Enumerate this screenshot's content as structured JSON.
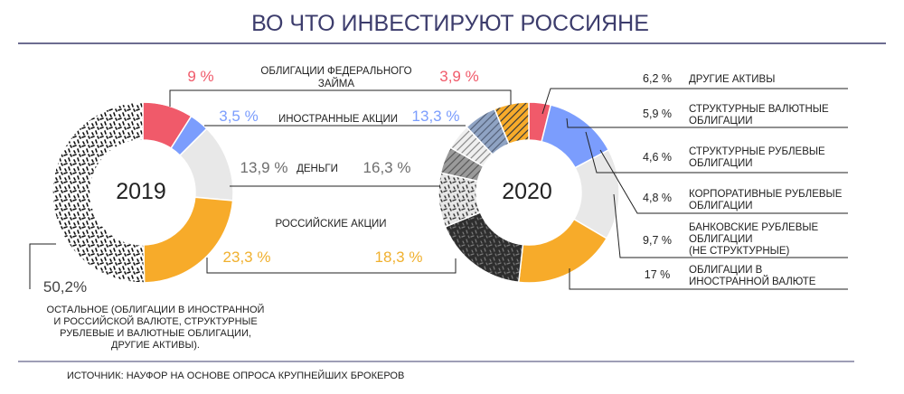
{
  "title": "ВО ЧТО ИНВЕСТИРУЮТ РОССИЯНЕ",
  "source": "ИСТОЧНИК: НАУФОР НА ОСНОВЕ ОПРОСА КРУПНЕЙШИХ БРОКЕРОВ",
  "chart_data": {
    "type": "pie",
    "variant": "donut",
    "title": "ВО ЧТО ИНВЕСТИРУЮТ РОССИЯНЕ",
    "charts": [
      {
        "year": "2019",
        "slices": [
          {
            "label": "ОБЛИГАЦИИ ФЕДЕРАЛЬНОГО ЗАЙМА",
            "value": 9,
            "value_label": "9 %",
            "color": "#f05a6a"
          },
          {
            "label": "ИНОСТРАННЫЕ АКЦИИ",
            "value": 3.5,
            "value_label": "3,5 %",
            "color": "#7b9dfd"
          },
          {
            "label": "ДЕНЬГИ",
            "value": 13.9,
            "value_label": "13,9 %",
            "color": "#e8e8e8"
          },
          {
            "label": "РОССИЙСКИЕ АКЦИИ",
            "value": 23.3,
            "value_label": "23,3 %",
            "color": "#f7ab2a"
          },
          {
            "label": "ОСТАЛЬНОЕ (ОБЛИГАЦИИ В ИНОСТРАННОЙ И РОССИЙСКОЙ ВАЛЮТЕ, СТРУКТУРНЫЕ РУБЛЕВЫЕ И ВАЛЮТНЫЕ ОБЛИГАЦИИ, ДРУГИЕ АКТИВЫ).",
            "value": 50.2,
            "value_label": "50,2%",
            "color": "#ffffff",
            "pattern": "black-dashes"
          }
        ]
      },
      {
        "year": "2020",
        "slices": [
          {
            "label": "ОБЛИГАЦИИ ФЕДЕРАЛЬНОГО ЗАЙМА",
            "value": 3.9,
            "value_label": "3,9 %",
            "color": "#f05a6a"
          },
          {
            "label": "ИНОСТРАННЫЕ АКЦИИ",
            "value": 13.3,
            "value_label": "13,3 %",
            "color": "#7b9dfd"
          },
          {
            "label": "ДЕНЬГИ",
            "value": 16.3,
            "value_label": "16,3 %",
            "color": "#e8e8e8"
          },
          {
            "label": "РОССИЙСКИЕ АКЦИИ",
            "value": 18.3,
            "value_label": "18,3 %",
            "color": "#f7ab2a"
          },
          {
            "label": "ОБЛИГАЦИИ В ИНОСТРАННОЙ ВАЛЮТЕ",
            "value": 17,
            "value_label": "17 %",
            "color": "#3a3a3a",
            "pattern": "dark"
          },
          {
            "label": "БАНКОВСКИЕ РУБЛЕВЫЕ ОБЛИГАЦИИ (НЕ СТРУКТУРНЫЕ)",
            "value": 9.7,
            "value_label": "9,7 %",
            "color": "#e5e5e5",
            "pattern": "grey-dashes"
          },
          {
            "label": "КОРПОРАТИВНЫЕ РУБЛЕВЫЕ ОБЛИГАЦИИ",
            "value": 4.8,
            "value_label": "4,8 %",
            "color": "#9a9a9a",
            "pattern": "grey"
          },
          {
            "label": "СТРУКТУРНЫЕ РУБЛЕВЫЕ ОБЛИГАЦИИ",
            "value": 4.6,
            "value_label": "4,6 %",
            "color": "#eeeeee",
            "pattern": "light"
          },
          {
            "label": "СТРУКТУРНЫЕ ВАЛЮТНЫЕ ОБЛИГАЦИИ",
            "value": 5.9,
            "value_label": "5,9 %",
            "color": "#8fa3c3",
            "pattern": "blue-grey"
          },
          {
            "label": "ДРУГИЕ АКТИВЫ",
            "value": 6.2,
            "value_label": "6,2 %",
            "color": "#f7ab2a",
            "pattern": "orange"
          }
        ]
      }
    ]
  }
}
